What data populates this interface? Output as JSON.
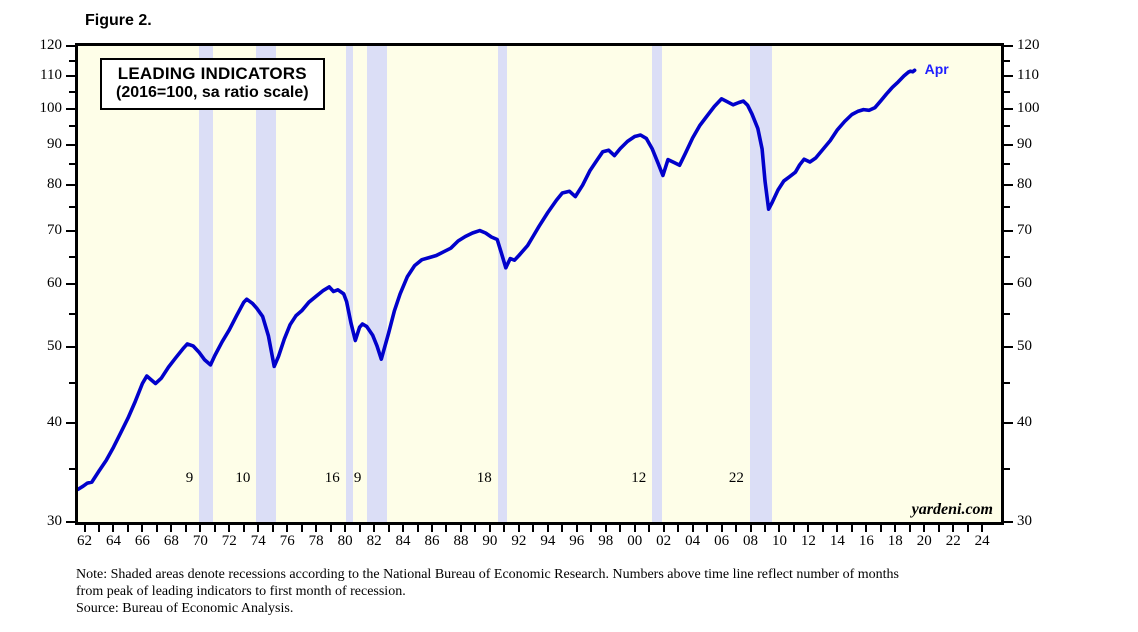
{
  "figure_label": "Figure 2.",
  "title_box": {
    "line1": "LEADING INDICATORS",
    "line2": "(2016=100, sa ratio scale)"
  },
  "end_label": "Apr",
  "watermark": "yardeni.com",
  "note": {
    "line1": "Note: Shaded areas denote recessions according to the National Bureau of Economic Research. Numbers above time line reflect number of months",
    "line2": "from peak of leading indicators to first month of recession.",
    "line3": "Source: Bureau of Economic Analysis."
  },
  "colors": {
    "plot_background": "#FEFEE8",
    "recession_band": "#DBDEF6",
    "series_line": "#0101CB",
    "end_label_blue": "#1F1FFF",
    "axis_black": "#000000"
  },
  "chart_data": {
    "type": "line",
    "title": "LEADING INDICATORS (2016=100, sa ratio scale)",
    "scale": "log (ratio scale)",
    "x_range": [
      1961.55,
      2025.3
    ],
    "ylim": [
      30,
      120
    ],
    "y_major_ticks": [
      30,
      40,
      50,
      60,
      70,
      80,
      90,
      100,
      110,
      120
    ],
    "y_minor_ticks": [
      35,
      45,
      55,
      65,
      75,
      85,
      95,
      105,
      115
    ],
    "x_labeled_years": [
      1962,
      1964,
      1966,
      1968,
      1970,
      1972,
      1974,
      1976,
      1978,
      1980,
      1982,
      1984,
      1986,
      1988,
      1990,
      1992,
      1994,
      1996,
      1998,
      2000,
      2002,
      2004,
      2006,
      2008,
      2010,
      2012,
      2014,
      2016,
      2018,
      2020,
      2022,
      2024
    ],
    "x_tick_labels": [
      "62",
      "64",
      "66",
      "68",
      "70",
      "72",
      "74",
      "76",
      "78",
      "80",
      "82",
      "84",
      "86",
      "88",
      "90",
      "92",
      "94",
      "96",
      "98",
      "00",
      "02",
      "04",
      "06",
      "08",
      "10",
      "12",
      "14",
      "16",
      "18",
      "20",
      "22",
      "24"
    ],
    "grid": false,
    "legend": "none",
    "recessions": [
      {
        "start": 1969.92,
        "end": 1970.87,
        "months_from_peak": "9"
      },
      {
        "start": 1973.87,
        "end": 1975.21,
        "months_from_peak": "10"
      },
      {
        "start": 1980.04,
        "end": 1980.54,
        "months_from_peak": "16"
      },
      {
        "start": 1981.54,
        "end": 1982.87,
        "months_from_peak": "9"
      },
      {
        "start": 1990.54,
        "end": 1991.21,
        "months_from_peak": "18"
      },
      {
        "start": 2001.21,
        "end": 2001.87,
        "months_from_peak": "12"
      },
      {
        "start": 2007.96,
        "end": 2009.46,
        "months_from_peak": "22"
      }
    ],
    "months_label_value_level": 34,
    "series": [
      {
        "name": "Leading Indicators (2016=100, sa)",
        "end_point_label": "Apr",
        "points": [
          [
            1961.55,
            33.0
          ],
          [
            1961.9,
            33.3
          ],
          [
            1962.2,
            33.6
          ],
          [
            1962.5,
            33.7
          ],
          [
            1963.0,
            34.8
          ],
          [
            1963.5,
            35.9
          ],
          [
            1964.0,
            37.3
          ],
          [
            1964.5,
            38.9
          ],
          [
            1965.0,
            40.6
          ],
          [
            1965.5,
            42.6
          ],
          [
            1966.0,
            44.9
          ],
          [
            1966.3,
            45.9
          ],
          [
            1966.6,
            45.4
          ],
          [
            1966.9,
            44.9
          ],
          [
            1967.3,
            45.6
          ],
          [
            1967.8,
            47.1
          ],
          [
            1968.3,
            48.4
          ],
          [
            1968.8,
            49.7
          ],
          [
            1969.1,
            50.4
          ],
          [
            1969.5,
            50.1
          ],
          [
            1969.9,
            49.2
          ],
          [
            1970.3,
            48.1
          ],
          [
            1970.7,
            47.4
          ],
          [
            1971.0,
            48.7
          ],
          [
            1971.5,
            50.7
          ],
          [
            1972.0,
            52.5
          ],
          [
            1972.5,
            54.7
          ],
          [
            1973.0,
            56.9
          ],
          [
            1973.2,
            57.4
          ],
          [
            1973.6,
            56.7
          ],
          [
            1973.9,
            55.9
          ],
          [
            1974.3,
            54.6
          ],
          [
            1974.7,
            51.6
          ],
          [
            1975.1,
            47.2
          ],
          [
            1975.4,
            48.6
          ],
          [
            1975.8,
            51.1
          ],
          [
            1976.2,
            53.3
          ],
          [
            1976.6,
            54.7
          ],
          [
            1977.0,
            55.5
          ],
          [
            1977.5,
            56.9
          ],
          [
            1978.0,
            57.9
          ],
          [
            1978.5,
            58.9
          ],
          [
            1978.9,
            59.5
          ],
          [
            1979.2,
            58.7
          ],
          [
            1979.5,
            59.0
          ],
          [
            1979.9,
            58.3
          ],
          [
            1980.1,
            57.0
          ],
          [
            1980.4,
            53.6
          ],
          [
            1980.7,
            50.9
          ],
          [
            1981.0,
            52.9
          ],
          [
            1981.2,
            53.4
          ],
          [
            1981.5,
            53.0
          ],
          [
            1981.9,
            51.7
          ],
          [
            1982.2,
            50.1
          ],
          [
            1982.5,
            48.2
          ],
          [
            1983.0,
            52.0
          ],
          [
            1983.4,
            55.5
          ],
          [
            1983.8,
            58.3
          ],
          [
            1984.3,
            61.3
          ],
          [
            1984.8,
            63.3
          ],
          [
            1985.3,
            64.4
          ],
          [
            1985.8,
            64.8
          ],
          [
            1986.3,
            65.2
          ],
          [
            1986.8,
            65.9
          ],
          [
            1987.3,
            66.6
          ],
          [
            1987.8,
            68.0
          ],
          [
            1988.3,
            68.9
          ],
          [
            1988.8,
            69.6
          ],
          [
            1989.3,
            70.1
          ],
          [
            1989.7,
            69.6
          ],
          [
            1990.1,
            68.8
          ],
          [
            1990.5,
            68.3
          ],
          [
            1990.8,
            65.6
          ],
          [
            1991.1,
            62.9
          ],
          [
            1991.4,
            64.6
          ],
          [
            1991.7,
            64.3
          ],
          [
            1992.0,
            65.2
          ],
          [
            1992.6,
            67.1
          ],
          [
            1993.0,
            69.0
          ],
          [
            1993.4,
            71.0
          ],
          [
            1994.0,
            73.9
          ],
          [
            1994.6,
            76.6
          ],
          [
            1995.0,
            78.2
          ],
          [
            1995.5,
            78.6
          ],
          [
            1995.9,
            77.4
          ],
          [
            1996.4,
            80.0
          ],
          [
            1996.9,
            83.4
          ],
          [
            1997.4,
            86.1
          ],
          [
            1997.8,
            88.2
          ],
          [
            1998.2,
            88.6
          ],
          [
            1998.6,
            87.2
          ],
          [
            1999.0,
            89.0
          ],
          [
            1999.5,
            90.9
          ],
          [
            2000.0,
            92.2
          ],
          [
            2000.4,
            92.6
          ],
          [
            2000.8,
            91.7
          ],
          [
            2001.2,
            89.0
          ],
          [
            2001.6,
            85.4
          ],
          [
            2001.95,
            82.3
          ],
          [
            2002.3,
            86.2
          ],
          [
            2002.7,
            85.5
          ],
          [
            2003.1,
            84.8
          ],
          [
            2003.5,
            87.8
          ],
          [
            2004.0,
            91.8
          ],
          [
            2004.5,
            95.2
          ],
          [
            2005.0,
            97.9
          ],
          [
            2005.5,
            100.6
          ],
          [
            2006.0,
            102.9
          ],
          [
            2006.4,
            102.0
          ],
          [
            2006.8,
            101.1
          ],
          [
            2007.2,
            101.8
          ],
          [
            2007.5,
            102.2
          ],
          [
            2007.8,
            101.0
          ],
          [
            2008.1,
            98.4
          ],
          [
            2008.5,
            94.4
          ],
          [
            2008.8,
            88.9
          ],
          [
            2009.0,
            81.0
          ],
          [
            2009.25,
            74.6
          ],
          [
            2009.5,
            76.1
          ],
          [
            2009.9,
            78.9
          ],
          [
            2010.3,
            81.0
          ],
          [
            2010.7,
            82.0
          ],
          [
            2011.1,
            83.1
          ],
          [
            2011.4,
            84.9
          ],
          [
            2011.7,
            86.3
          ],
          [
            2012.1,
            85.6
          ],
          [
            2012.5,
            86.6
          ],
          [
            2013.0,
            88.8
          ],
          [
            2013.5,
            91.1
          ],
          [
            2014.0,
            94.0
          ],
          [
            2014.5,
            96.3
          ],
          [
            2015.0,
            98.3
          ],
          [
            2015.4,
            99.2
          ],
          [
            2015.8,
            99.7
          ],
          [
            2016.2,
            99.5
          ],
          [
            2016.6,
            100.3
          ],
          [
            2017.0,
            102.3
          ],
          [
            2017.4,
            104.4
          ],
          [
            2017.8,
            106.4
          ],
          [
            2018.2,
            108.1
          ],
          [
            2018.6,
            110.0
          ],
          [
            2018.9,
            111.2
          ],
          [
            2019.05,
            111.5
          ],
          [
            2019.2,
            111.3
          ],
          [
            2019.33,
            111.8
          ]
        ]
      }
    ]
  }
}
